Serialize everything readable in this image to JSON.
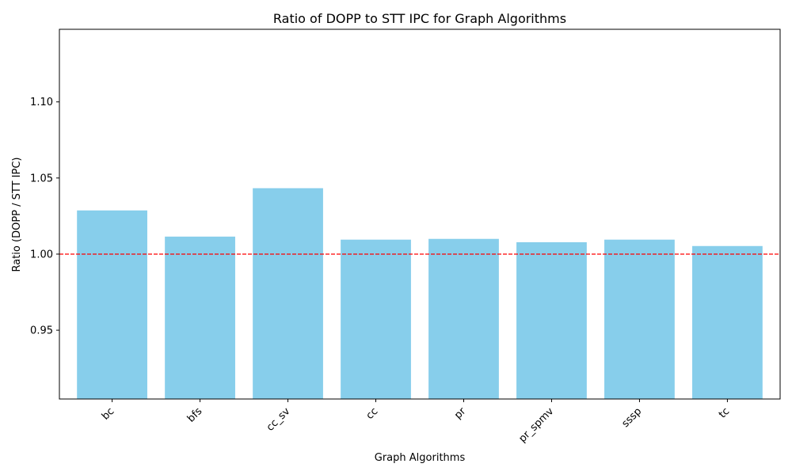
{
  "chart_data": {
    "type": "bar",
    "title": "Ratio of DOPP to STT IPC for Graph Algorithms",
    "xlabel": "Graph Algorithms",
    "ylabel": "Ratio (DOPP / STT IPC)",
    "categories": [
      "bc",
      "bfs",
      "cc_sv",
      "cc",
      "pr",
      "pr_spmv",
      "sssp",
      "tc"
    ],
    "values": [
      1.0287,
      1.0115,
      1.0433,
      1.0095,
      1.01,
      1.0078,
      1.0095,
      1.0053
    ],
    "ylim": [
      0.9048,
      1.1477
    ],
    "yticks": [
      0.95,
      1.0,
      1.05,
      1.1
    ],
    "ytick_labels": [
      "0.95",
      "1.00",
      "1.05",
      "1.10"
    ],
    "reference_line": {
      "y": 1.0,
      "style": "dashed",
      "color": "#ff0000"
    },
    "bar_color": "#87ceeb",
    "grid": false,
    "xtick_rotation": 45
  }
}
